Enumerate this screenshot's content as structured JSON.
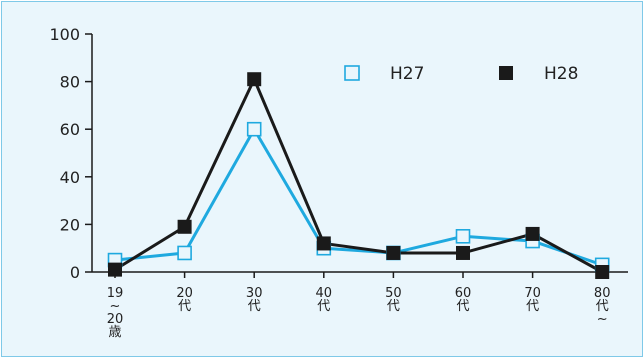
{
  "chart_data": {
    "type": "line",
    "categories": [
      [
        "19",
        "~",
        "20",
        "歳"
      ],
      [
        "20",
        "代"
      ],
      [
        "30",
        "代"
      ],
      [
        "40",
        "代"
      ],
      [
        "50",
        "代"
      ],
      [
        "60",
        "代"
      ],
      [
        "70",
        "代"
      ],
      [
        "80",
        "代",
        "~"
      ]
    ],
    "series": [
      {
        "name": "H27",
        "values": [
          5,
          8,
          60,
          10,
          8,
          15,
          13,
          3
        ],
        "color": "#1fa9df",
        "marker": "hollow-square"
      },
      {
        "name": "H28",
        "values": [
          1,
          19,
          81,
          12,
          8,
          8,
          16,
          0
        ],
        "color": "#1a1a1a",
        "marker": "filled-square"
      }
    ],
    "y_ticks": [
      "0",
      "20",
      "40",
      "60",
      "80",
      "100"
    ],
    "ylim": [
      0,
      100
    ],
    "grid": false,
    "legend": "top-right",
    "background": "#eaf6fc",
    "border_color": "#7fc9e8"
  }
}
